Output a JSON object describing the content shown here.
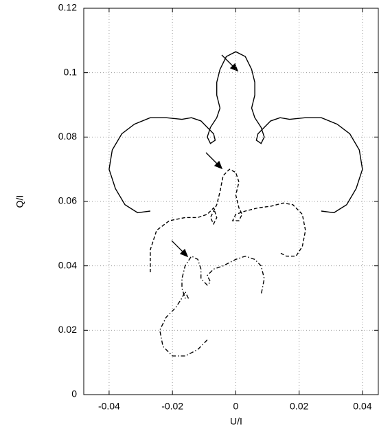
{
  "chart_data": {
    "type": "line",
    "xlabel": "U/I",
    "ylabel": "Q/I",
    "xlim": [
      -0.048,
      0.045
    ],
    "ylim": [
      0,
      0.12
    ],
    "xticks": [
      -0.04,
      -0.02,
      0,
      0.02,
      0.04
    ],
    "yticks": [
      0,
      0.02,
      0.04,
      0.06,
      0.08,
      0.1,
      0.12
    ],
    "grid": true,
    "series": [
      {
        "color": "#000000",
        "linestyle": "solid",
        "x": [
          -0.027,
          -0.031,
          -0.035,
          -0.038,
          -0.04,
          -0.039,
          -0.036,
          -0.032,
          -0.027,
          -0.022,
          -0.017,
          -0.014,
          -0.011,
          -0.009,
          -0.007,
          -0.0065,
          -0.008,
          -0.009,
          -0.008,
          -0.006,
          -0.005,
          -0.006,
          -0.006,
          -0.005,
          -0.003,
          0,
          0.003,
          0.005,
          0.006,
          0.006,
          0.005,
          0.006,
          0.008,
          0.009,
          0.008,
          0.0065,
          0.007,
          0.009,
          0.011,
          0.014,
          0.017,
          0.022,
          0.027,
          0.032,
          0.036,
          0.039,
          0.04,
          0.038,
          0.035,
          0.031,
          0.027
        ],
        "y": [
          0.057,
          0.0565,
          0.059,
          0.064,
          0.07,
          0.076,
          0.081,
          0.084,
          0.086,
          0.086,
          0.0855,
          0.086,
          0.085,
          0.083,
          0.081,
          0.079,
          0.078,
          0.08,
          0.083,
          0.086,
          0.089,
          0.093,
          0.097,
          0.101,
          0.105,
          0.1065,
          0.105,
          0.101,
          0.097,
          0.093,
          0.089,
          0.086,
          0.083,
          0.08,
          0.078,
          0.079,
          0.081,
          0.083,
          0.085,
          0.086,
          0.0855,
          0.086,
          0.086,
          0.084,
          0.081,
          0.076,
          0.07,
          0.064,
          0.059,
          0.0565,
          0.057
        ]
      },
      {
        "color": "#000000",
        "linestyle": "dashed",
        "x": [
          -0.027,
          -0.027,
          -0.025,
          -0.021,
          -0.016,
          -0.012,
          -0.009,
          -0.007,
          -0.006,
          -0.007,
          -0.008,
          -0.006,
          -0.005,
          -0.004,
          -0.002,
          0,
          0.001,
          0,
          0.001,
          0.002,
          0.001,
          -0.001,
          0,
          0.003,
          0.007,
          0.011,
          0.015,
          0.018,
          0.021,
          0.022,
          0.021,
          0.019,
          0.016,
          0.014
        ],
        "y": [
          0.038,
          0.045,
          0.051,
          0.054,
          0.055,
          0.055,
          0.056,
          0.058,
          0.055,
          0.053,
          0.055,
          0.059,
          0.063,
          0.068,
          0.07,
          0.069,
          0.066,
          0.062,
          0.058,
          0.056,
          0.054,
          0.054,
          0.056,
          0.057,
          0.058,
          0.0585,
          0.0595,
          0.059,
          0.056,
          0.051,
          0.046,
          0.043,
          0.043,
          0.044
        ]
      },
      {
        "color": "#000000",
        "linestyle": "dashdot",
        "x": [
          -0.009,
          -0.012,
          -0.016,
          -0.02,
          -0.023,
          -0.024,
          -0.022,
          -0.019,
          -0.017,
          -0.016,
          -0.015,
          -0.016,
          -0.017,
          -0.017,
          -0.016,
          -0.014,
          -0.012,
          -0.011,
          -0.011,
          -0.009,
          -0.008,
          -0.009,
          -0.007,
          -0.004,
          0,
          0.003,
          0.006,
          0.008,
          0.009,
          0.008
        ],
        "y": [
          0.017,
          0.014,
          0.012,
          0.012,
          0.015,
          0.02,
          0.024,
          0.027,
          0.03,
          0.032,
          0.03,
          0.03,
          0.033,
          0.036,
          0.04,
          0.043,
          0.042,
          0.039,
          0.036,
          0.034,
          0.035,
          0.037,
          0.039,
          0.04,
          0.042,
          0.043,
          0.042,
          0.04,
          0.036,
          0.031
        ]
      }
    ]
  }
}
